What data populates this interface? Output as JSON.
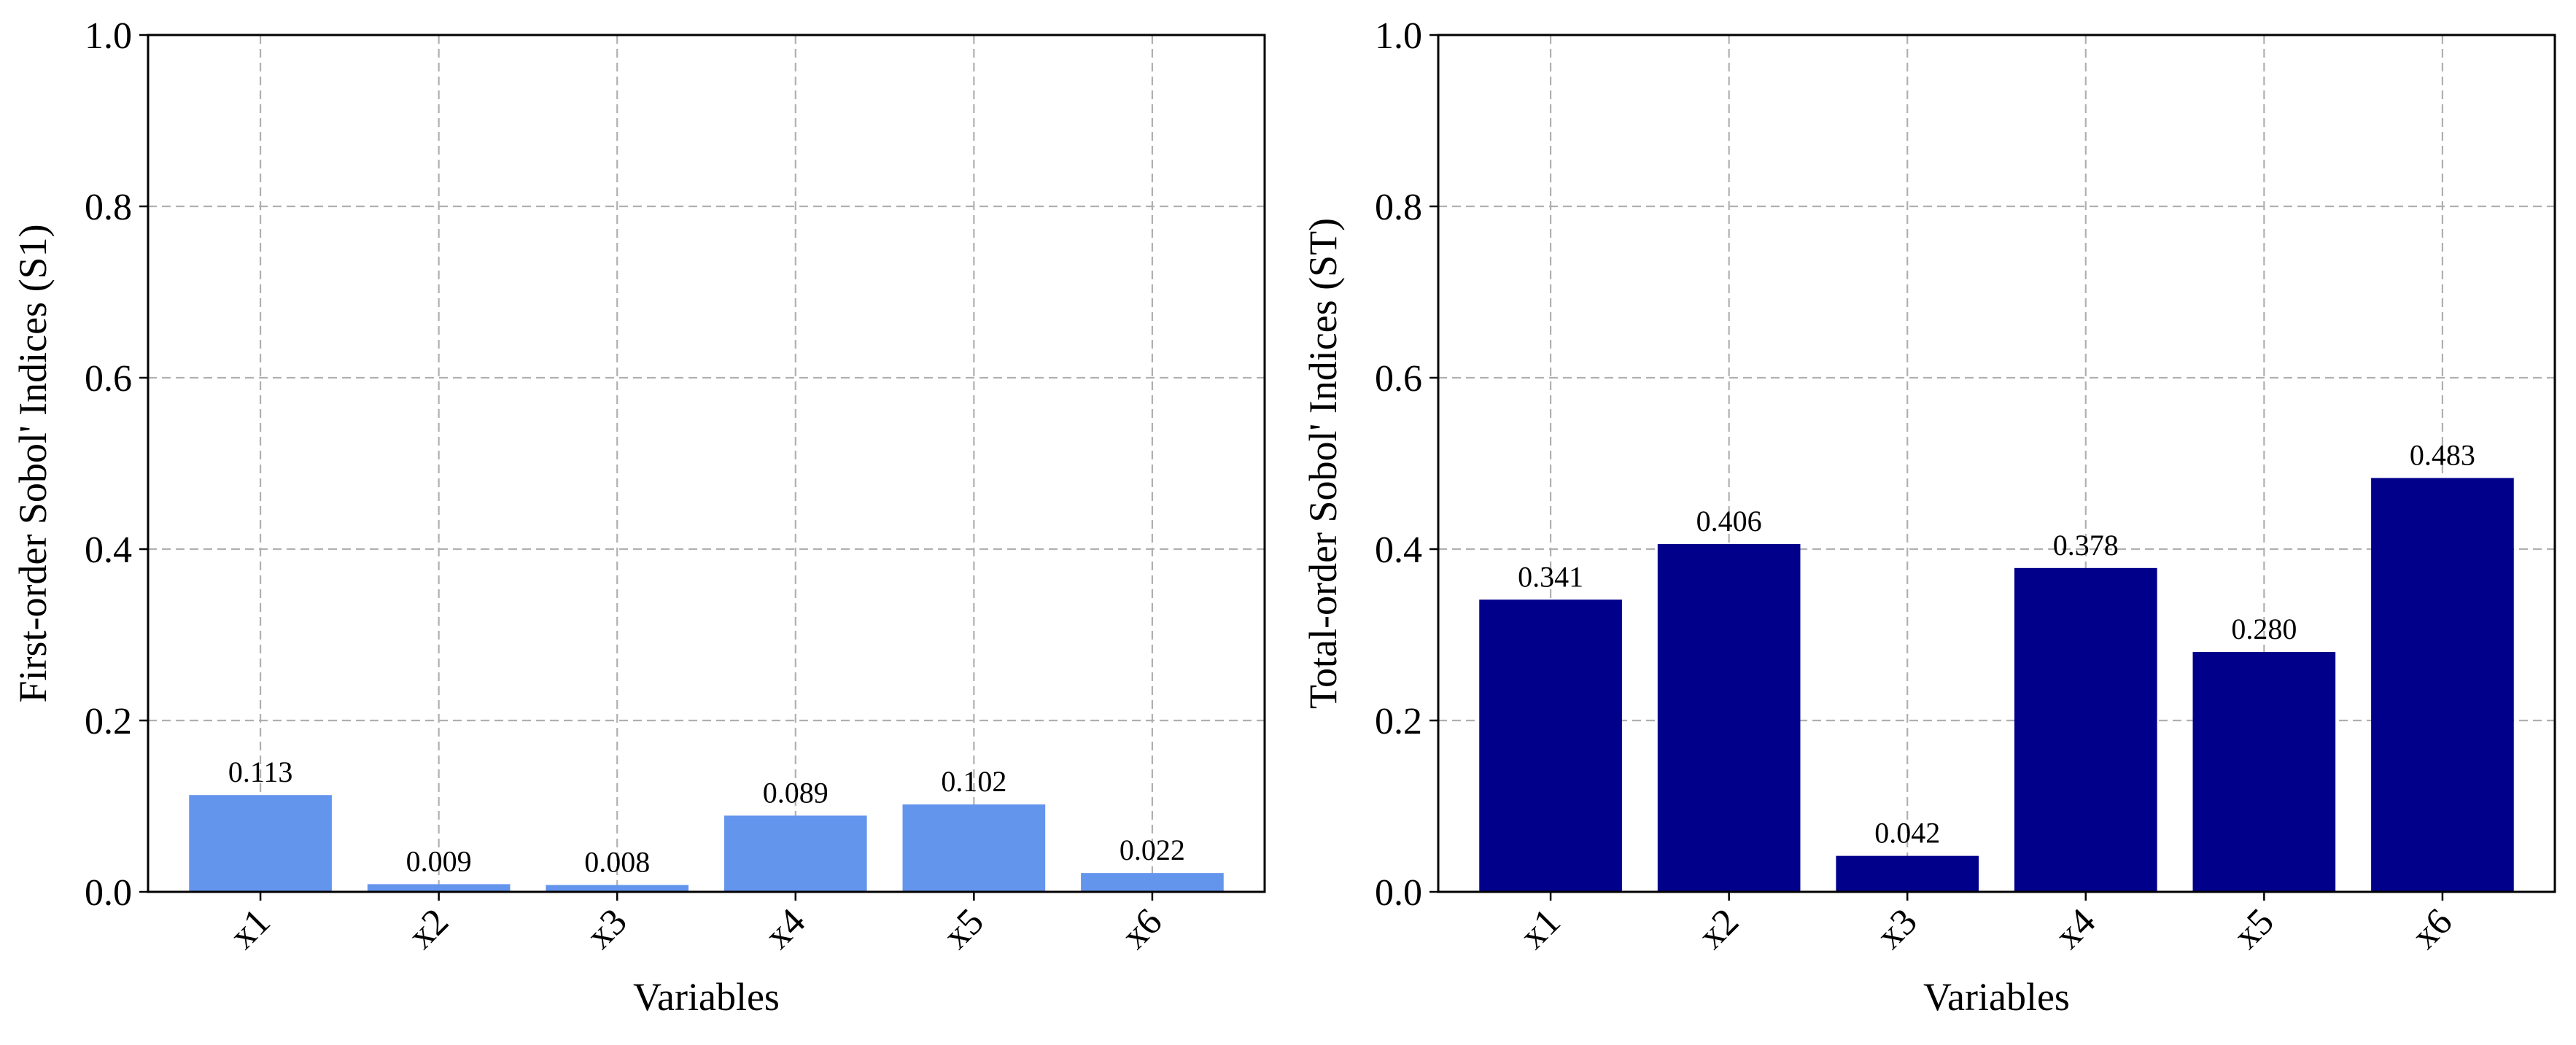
{
  "chart_data": [
    {
      "type": "bar",
      "categories": [
        "x1",
        "x2",
        "x3",
        "x4",
        "x5",
        "x6"
      ],
      "values": [
        0.113,
        0.009,
        0.008,
        0.089,
        0.102,
        0.022
      ],
      "data_labels": [
        "0.113",
        "0.009",
        "0.008",
        "0.089",
        "0.102",
        "0.022"
      ],
      "xlabel": "Variables",
      "ylabel": "First-order Sobol' Indices (S1)",
      "ylim": [
        0,
        1.0
      ],
      "yticks": [
        "0.0",
        "0.2",
        "0.4",
        "0.6",
        "0.8",
        "1.0"
      ],
      "grid": true,
      "color": "#6495ED"
    },
    {
      "type": "bar",
      "categories": [
        "x1",
        "x2",
        "x3",
        "x4",
        "x5",
        "x6"
      ],
      "values": [
        0.341,
        0.406,
        0.042,
        0.378,
        0.28,
        0.483
      ],
      "data_labels": [
        "0.341",
        "0.406",
        "0.042",
        "0.378",
        "0.280",
        "0.483"
      ],
      "xlabel": "Variables",
      "ylabel": "Total-order Sobol' Indices (ST)",
      "ylim": [
        0,
        1.0
      ],
      "yticks": [
        "0.0",
        "0.2",
        "0.4",
        "0.6",
        "0.8",
        "1.0"
      ],
      "grid": true,
      "color": "#00008B"
    }
  ]
}
